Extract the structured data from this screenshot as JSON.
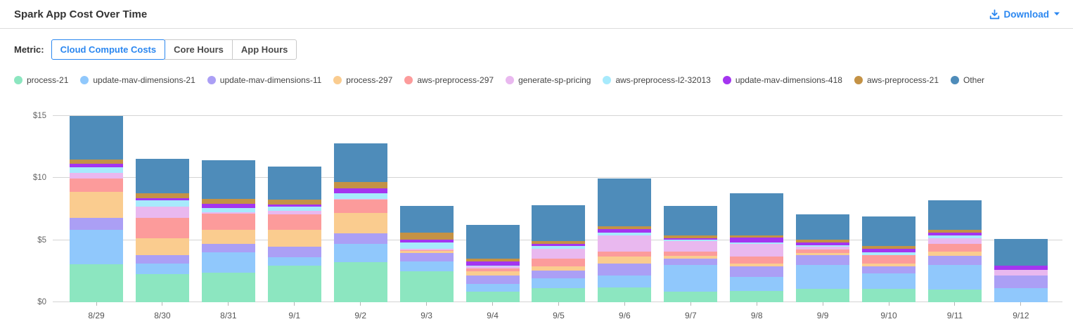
{
  "header": {
    "title": "Spark App Cost Over Time",
    "download_label": "Download"
  },
  "metric": {
    "label": "Metric:",
    "options": [
      {
        "label": "Cloud Compute Costs",
        "selected": true
      },
      {
        "label": "Core Hours",
        "selected": false
      },
      {
        "label": "App Hours",
        "selected": false
      }
    ]
  },
  "colors": {
    "accent_blue": "#2B87F0",
    "gridline": "#d4d4d4",
    "axis_text": "#666666"
  },
  "chart_data": {
    "type": "bar",
    "stacked": true,
    "title": "Spark App Cost Over Time",
    "xlabel": "",
    "ylabel": "",
    "ylim": [
      0,
      15
    ],
    "y_ticks": [
      {
        "value": 0,
        "label": "$0"
      },
      {
        "value": 5,
        "label": "$5"
      },
      {
        "value": 10,
        "label": "$10"
      },
      {
        "value": 15,
        "label": "$15"
      }
    ],
    "grid": true,
    "legend_position": "top",
    "categories": [
      "8/29",
      "8/30",
      "8/31",
      "9/1",
      "9/2",
      "9/3",
      "9/4",
      "9/5",
      "9/6",
      "9/7",
      "9/8",
      "9/9",
      "9/10",
      "9/11",
      "9/12"
    ],
    "series": [
      {
        "name": "process-21",
        "color": "#8CE6C0",
        "values": [
          3.03,
          2.26,
          2.35,
          2.95,
          3.2,
          2.5,
          0.85,
          1.13,
          1.18,
          0.85,
          0.88,
          1.07,
          1.07,
          1.0,
          0.0
        ]
      },
      {
        "name": "update-mav-dimensions-21",
        "color": "#90C8FC",
        "values": [
          2.8,
          0.84,
          1.69,
          0.68,
          1.5,
          0.79,
          0.6,
          0.81,
          0.98,
          2.16,
          1.18,
          1.94,
          1.24,
          2.01,
          1.13
        ]
      },
      {
        "name": "update-mav-dimensions-11",
        "color": "#AB9FF5",
        "values": [
          0.98,
          0.72,
          0.66,
          0.83,
          0.85,
          0.7,
          0.71,
          0.6,
          0.98,
          0.51,
          0.81,
          0.81,
          0.6,
          0.7,
          1.0
        ]
      },
      {
        "name": "process-297",
        "color": "#FACC8F",
        "values": [
          2.08,
          1.35,
          1.13,
          1.37,
          1.65,
          0.15,
          0.34,
          0.34,
          0.56,
          0.19,
          0.26,
          0.13,
          0.23,
          0.38,
          0.0
        ]
      },
      {
        "name": "aws-preprocess-297",
        "color": "#FC9B9B",
        "values": [
          1.1,
          1.6,
          1.32,
          1.26,
          1.07,
          0.05,
          0.23,
          0.64,
          0.38,
          0.38,
          0.53,
          0.32,
          0.68,
          0.62,
          0.0
        ]
      },
      {
        "name": "generate-sp-pricing",
        "color": "#E9B8EF",
        "values": [
          0.42,
          0.94,
          0.12,
          0.28,
          0.05,
          0.13,
          0.15,
          0.81,
          1.32,
          0.81,
          1.03,
          0.19,
          0.0,
          0.43,
          0.45
        ]
      },
      {
        "name": "aws-preprocess-l2-32013",
        "color": "#A7EAFC",
        "values": [
          0.49,
          0.51,
          0.32,
          0.34,
          0.43,
          0.49,
          0.05,
          0.19,
          0.19,
          0.13,
          0.13,
          0.15,
          0.19,
          0.26,
          0.0
        ]
      },
      {
        "name": "update-mav-dimensions-418",
        "color": "#A435F0",
        "values": [
          0.23,
          0.18,
          0.34,
          0.19,
          0.41,
          0.26,
          0.38,
          0.19,
          0.3,
          0.15,
          0.38,
          0.19,
          0.32,
          0.19,
          0.34
        ]
      },
      {
        "name": "aws-preprocess-21",
        "color": "#C49245",
        "values": [
          0.34,
          0.38,
          0.38,
          0.38,
          0.51,
          0.56,
          0.19,
          0.23,
          0.23,
          0.23,
          0.19,
          0.23,
          0.19,
          0.24,
          0.0
        ]
      },
      {
        "name": "Other",
        "color": "#4E8CBA",
        "values": [
          3.54,
          2.78,
          3.14,
          2.67,
          3.1,
          2.12,
          2.73,
          2.88,
          3.82,
          2.37,
          3.38,
          2.03,
          2.41,
          2.39,
          2.2
        ]
      }
    ]
  }
}
